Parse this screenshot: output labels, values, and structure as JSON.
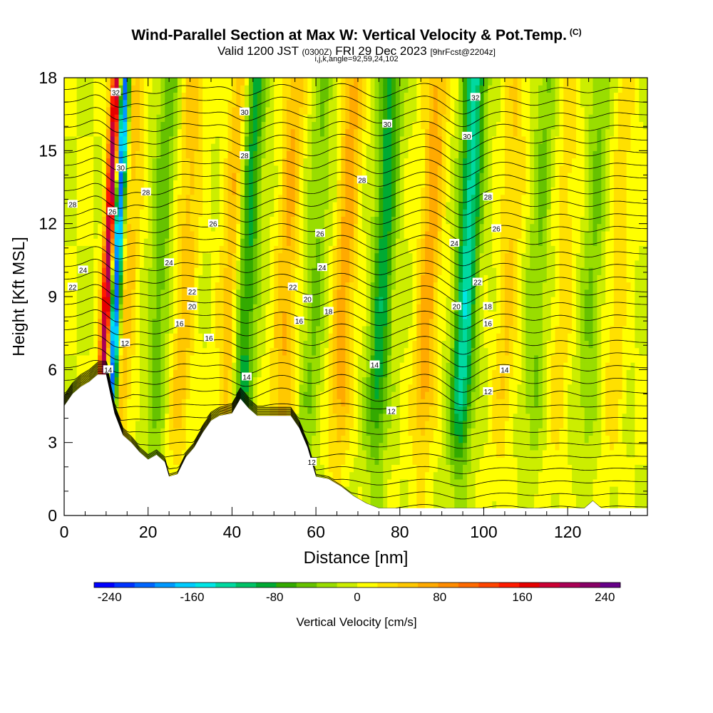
{
  "header": {
    "title": "Wind-Parallel Section at Max W: Vertical Velocity & Pot.Temp.",
    "copyright": "(C)",
    "valid_prefix": "Valid 1200 JST",
    "utc": "(0300Z)",
    "valid_date": "FRI 29 Dec 2023",
    "forecast": "[9hrFcst@2204z]",
    "ijk": "i,j,k,angle=92,59,24,102"
  },
  "colorbar": {
    "label": "Vertical Velocity [cm/s]",
    "ticks": [
      "-240",
      "-160",
      "-80",
      "0",
      "80",
      "160",
      "240"
    ],
    "colors": [
      "#0000ff",
      "#0033ff",
      "#0066ff",
      "#0099ff",
      "#00ccff",
      "#00e6e6",
      "#00d9a0",
      "#00c266",
      "#00aa33",
      "#33aa00",
      "#66c200",
      "#99dd00",
      "#ccee00",
      "#ffff00",
      "#ffe000",
      "#ffc800",
      "#ffaa00",
      "#ff8c00",
      "#ff6a00",
      "#ff4400",
      "#ff1a00",
      "#e60000",
      "#cc0033",
      "#aa0055",
      "#880066",
      "#660088"
    ]
  },
  "chart_data": {
    "type": "heatmap",
    "title": "Wind-Parallel Section at Max W: Vertical Velocity & Pot.Temp.",
    "xlabel": "Distance [nm]",
    "ylabel": "Height [Kft MSL]",
    "xlim": [
      0,
      139
    ],
    "ylim": [
      0,
      18
    ],
    "x_ticks": [
      0,
      20,
      40,
      60,
      80,
      100,
      120
    ],
    "y_ticks": [
      0,
      3,
      6,
      9,
      12,
      15,
      18
    ],
    "colorbar_range": [
      -255,
      255
    ],
    "terrain": [
      [
        0,
        4.5
      ],
      [
        2,
        5.0
      ],
      [
        4,
        5.3
      ],
      [
        6,
        5.5
      ],
      [
        8,
        5.8
      ],
      [
        10,
        5.8
      ],
      [
        11,
        5.0
      ],
      [
        12,
        4.2
      ],
      [
        14,
        3.3
      ],
      [
        16,
        3.0
      ],
      [
        18,
        2.6
      ],
      [
        20,
        2.3
      ],
      [
        22,
        2.5
      ],
      [
        24,
        2.2
      ],
      [
        25,
        1.6
      ],
      [
        27,
        1.7
      ],
      [
        29,
        2.4
      ],
      [
        31,
        2.8
      ],
      [
        33,
        3.4
      ],
      [
        35,
        3.9
      ],
      [
        37,
        4.1
      ],
      [
        40,
        4.2
      ],
      [
        42,
        4.8
      ],
      [
        44,
        4.4
      ],
      [
        46,
        4.1
      ],
      [
        50,
        4.1
      ],
      [
        54,
        4.1
      ],
      [
        56,
        3.6
      ],
      [
        58,
        2.8
      ],
      [
        59,
        2.2
      ],
      [
        60,
        1.6
      ],
      [
        63,
        1.5
      ],
      [
        66,
        1.2
      ],
      [
        69,
        0.8
      ],
      [
        72,
        0.5
      ],
      [
        75,
        0.3
      ],
      [
        80,
        0.3
      ],
      [
        100,
        0.3
      ],
      [
        124,
        0.3
      ],
      [
        126,
        0.6
      ],
      [
        128,
        0.3
      ],
      [
        139,
        0.3
      ]
    ],
    "updrafts": [
      {
        "x": 9.5,
        "w": 220
      },
      {
        "x": 14,
        "w": 50
      },
      {
        "x": 28,
        "w": 50
      },
      {
        "x": 39,
        "w": 60
      },
      {
        "x": 52,
        "w": 60
      },
      {
        "x": 66,
        "w": 70
      },
      {
        "x": 86,
        "w": 70
      },
      {
        "x": 105,
        "w": 40
      },
      {
        "x": 118,
        "w": 30
      },
      {
        "x": 131,
        "w": 30
      }
    ],
    "downdrafts": [
      {
        "x": 11.5,
        "w": -240
      },
      {
        "x": 42.5,
        "w": -90
      },
      {
        "x": 75,
        "w": -90
      },
      {
        "x": 95,
        "w": -130
      },
      {
        "x": 22,
        "w": -50
      },
      {
        "x": 59,
        "w": -40
      },
      {
        "x": 112,
        "w": -40
      },
      {
        "x": 125,
        "w": -40
      }
    ],
    "theta_labels": [
      {
        "text": "32",
        "x": 12.3,
        "y": 17.4
      },
      {
        "text": "30",
        "x": 43,
        "y": 16.6
      },
      {
        "text": "32",
        "x": 98,
        "y": 17.2
      },
      {
        "text": "30",
        "x": 77,
        "y": 16.1
      },
      {
        "text": "30",
        "x": 96,
        "y": 15.6
      },
      {
        "text": "30",
        "x": 13.5,
        "y": 14.3
      },
      {
        "text": "28",
        "x": 43,
        "y": 14.8
      },
      {
        "text": "28",
        "x": 19.5,
        "y": 13.3
      },
      {
        "text": "28",
        "x": 71,
        "y": 13.8
      },
      {
        "text": "28",
        "x": 101,
        "y": 13.1
      },
      {
        "text": "28",
        "x": 2,
        "y": 12.8
      },
      {
        "text": "26",
        "x": 11.5,
        "y": 12.5
      },
      {
        "text": "26",
        "x": 35.5,
        "y": 12.0
      },
      {
        "text": "26",
        "x": 61,
        "y": 11.6
      },
      {
        "text": "26",
        "x": 103,
        "y": 11.8
      },
      {
        "text": "24",
        "x": 93,
        "y": 11.2
      },
      {
        "text": "24",
        "x": 4.5,
        "y": 10.1
      },
      {
        "text": "24",
        "x": 25,
        "y": 10.4
      },
      {
        "text": "24",
        "x": 61.5,
        "y": 10.2
      },
      {
        "text": "22",
        "x": 2,
        "y": 9.4
      },
      {
        "text": "22",
        "x": 30.5,
        "y": 9.2
      },
      {
        "text": "22",
        "x": 54.5,
        "y": 9.4
      },
      {
        "text": "22",
        "x": 98.5,
        "y": 9.6
      },
      {
        "text": "20",
        "x": 30.5,
        "y": 8.6
      },
      {
        "text": "20",
        "x": 58,
        "y": 8.9
      },
      {
        "text": "20",
        "x": 93.5,
        "y": 8.6
      },
      {
        "text": "18",
        "x": 63,
        "y": 8.4
      },
      {
        "text": "18",
        "x": 101,
        "y": 8.6
      },
      {
        "text": "16",
        "x": 27.5,
        "y": 7.9
      },
      {
        "text": "16",
        "x": 56,
        "y": 8.0
      },
      {
        "text": "16",
        "x": 101,
        "y": 7.9
      },
      {
        "text": "16",
        "x": 34.5,
        "y": 7.3
      },
      {
        "text": "12",
        "x": 14.5,
        "y": 7.1
      },
      {
        "text": "14",
        "x": 10.5,
        "y": 6.0
      },
      {
        "text": "14",
        "x": 43.5,
        "y": 5.7
      },
      {
        "text": "14",
        "x": 74,
        "y": 6.2
      },
      {
        "text": "14",
        "x": 105,
        "y": 6.0
      },
      {
        "text": "12",
        "x": 101,
        "y": 5.1
      },
      {
        "text": "12",
        "x": 78,
        "y": 4.3
      },
      {
        "text": "12",
        "x": 59,
        "y": 2.2
      }
    ]
  }
}
